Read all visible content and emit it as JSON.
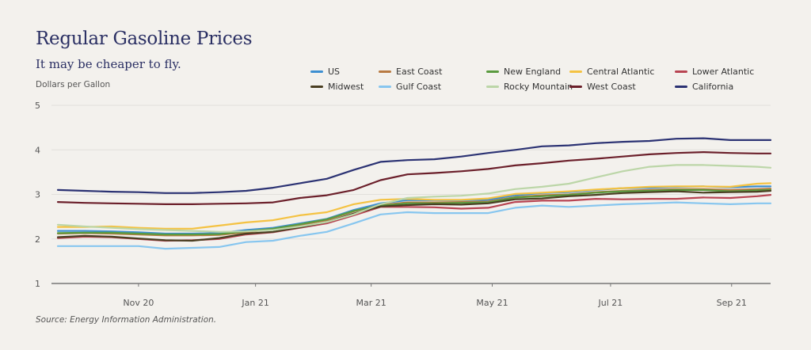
{
  "chart_data": {
    "type": "line",
    "title": "Regular Gasoline Prices",
    "subtitle": "It may be cheaper to fly.",
    "ylabel": "Dollars per Gallon",
    "xlabel": "",
    "source": "Source: Energy Information Administration.",
    "ylim": [
      1,
      5
    ],
    "yticks": [
      1,
      2,
      3,
      4,
      5
    ],
    "xlim_weeks": [
      0,
      53
    ],
    "x_weeks": [
      0,
      2,
      4,
      6,
      8,
      10,
      12,
      14,
      16,
      18,
      20,
      22,
      24,
      26,
      28,
      30,
      32,
      34,
      36,
      38,
      40,
      42,
      44,
      46,
      48,
      50,
      52,
      53
    ],
    "xticks": [
      {
        "label": "Nov 20",
        "week": 6.0
      },
      {
        "label": "Jan 21",
        "week": 14.7
      },
      {
        "label": "Mar 21",
        "week": 23.3
      },
      {
        "label": "May 21",
        "week": 32.3
      },
      {
        "label": "Jul 21",
        "week": 41.1
      },
      {
        "label": "Sep 21",
        "week": 50.1
      }
    ],
    "grid": true,
    "legend_position": "top-right",
    "series": [
      {
        "name": "US",
        "color": "#3d8fd1",
        "values": [
          2.18,
          2.18,
          2.17,
          2.15,
          2.12,
          2.12,
          2.13,
          2.2,
          2.25,
          2.35,
          2.45,
          2.65,
          2.8,
          2.87,
          2.87,
          2.87,
          2.88,
          2.98,
          3.03,
          3.05,
          3.1,
          3.14,
          3.15,
          3.17,
          3.18,
          3.16,
          3.18,
          3.18
        ]
      },
      {
        "name": "East Coast",
        "color": "#b87a42",
        "values": [
          2.12,
          2.13,
          2.12,
          2.1,
          2.08,
          2.08,
          2.09,
          2.15,
          2.22,
          2.31,
          2.42,
          2.62,
          2.76,
          2.82,
          2.82,
          2.83,
          2.84,
          2.94,
          2.98,
          3.0,
          3.05,
          3.08,
          3.1,
          3.12,
          3.12,
          3.1,
          3.12,
          3.13
        ]
      },
      {
        "name": "New England",
        "color": "#5a9a3f",
        "values": [
          2.13,
          2.14,
          2.14,
          2.12,
          2.1,
          2.1,
          2.11,
          2.17,
          2.23,
          2.33,
          2.44,
          2.63,
          2.75,
          2.8,
          2.8,
          2.81,
          2.82,
          2.93,
          2.96,
          2.99,
          3.04,
          3.07,
          3.08,
          3.1,
          3.1,
          3.07,
          3.09,
          3.1
        ]
      },
      {
        "name": "Central Atlantic",
        "color": "#f4c242",
        "values": [
          2.27,
          2.27,
          2.28,
          2.25,
          2.23,
          2.23,
          2.3,
          2.37,
          2.42,
          2.53,
          2.6,
          2.78,
          2.88,
          2.9,
          2.88,
          2.88,
          2.91,
          3.01,
          3.04,
          3.07,
          3.11,
          3.14,
          3.17,
          3.18,
          3.18,
          3.17,
          3.24,
          3.25
        ]
      },
      {
        "name": "Lower  Atlantic",
        "color": "#b84452",
        "values": [
          2.02,
          2.05,
          2.04,
          2.0,
          1.96,
          1.97,
          2.0,
          2.1,
          2.15,
          2.25,
          2.35,
          2.53,
          2.72,
          2.72,
          2.71,
          2.68,
          2.7,
          2.83,
          2.86,
          2.86,
          2.9,
          2.89,
          2.9,
          2.9,
          2.93,
          2.92,
          2.96,
          2.99
        ]
      },
      {
        "name": "Midwest",
        "color": "#4a3f22",
        "values": [
          2.04,
          2.07,
          2.05,
          2.01,
          1.97,
          1.96,
          2.02,
          2.12,
          2.16,
          2.26,
          2.38,
          2.57,
          2.73,
          2.76,
          2.78,
          2.77,
          2.8,
          2.89,
          2.91,
          2.96,
          2.99,
          3.03,
          3.05,
          3.07,
          3.04,
          3.05,
          3.06,
          3.08
        ]
      },
      {
        "name": "Gulf Coast",
        "color": "#87c6ef",
        "values": [
          1.84,
          1.84,
          1.84,
          1.84,
          1.78,
          1.8,
          1.82,
          1.93,
          1.96,
          2.07,
          2.16,
          2.35,
          2.55,
          2.6,
          2.58,
          2.58,
          2.58,
          2.7,
          2.75,
          2.72,
          2.75,
          2.78,
          2.8,
          2.82,
          2.8,
          2.78,
          2.8,
          2.8
        ]
      },
      {
        "name": "Rocky Mountain",
        "color": "#bcd6a8",
        "values": [
          2.32,
          2.28,
          2.25,
          2.22,
          2.2,
          2.18,
          2.16,
          2.17,
          2.2,
          2.28,
          2.38,
          2.55,
          2.78,
          2.92,
          2.95,
          2.97,
          3.02,
          3.12,
          3.17,
          3.24,
          3.38,
          3.52,
          3.62,
          3.66,
          3.66,
          3.64,
          3.62,
          3.6
        ]
      },
      {
        "name": "West Coast",
        "color": "#6b1f2a",
        "values": [
          2.83,
          2.81,
          2.8,
          2.79,
          2.78,
          2.78,
          2.79,
          2.8,
          2.82,
          2.92,
          2.98,
          3.1,
          3.32,
          3.45,
          3.48,
          3.52,
          3.57,
          3.65,
          3.7,
          3.76,
          3.8,
          3.85,
          3.9,
          3.93,
          3.95,
          3.93,
          3.92,
          3.92
        ]
      },
      {
        "name": "California",
        "color": "#2b3273",
        "values": [
          3.1,
          3.08,
          3.06,
          3.05,
          3.03,
          3.03,
          3.05,
          3.08,
          3.15,
          3.25,
          3.35,
          3.55,
          3.73,
          3.77,
          3.79,
          3.85,
          3.93,
          4.0,
          4.08,
          4.1,
          4.15,
          4.18,
          4.2,
          4.25,
          4.26,
          4.22,
          4.22,
          4.22
        ]
      }
    ]
  }
}
